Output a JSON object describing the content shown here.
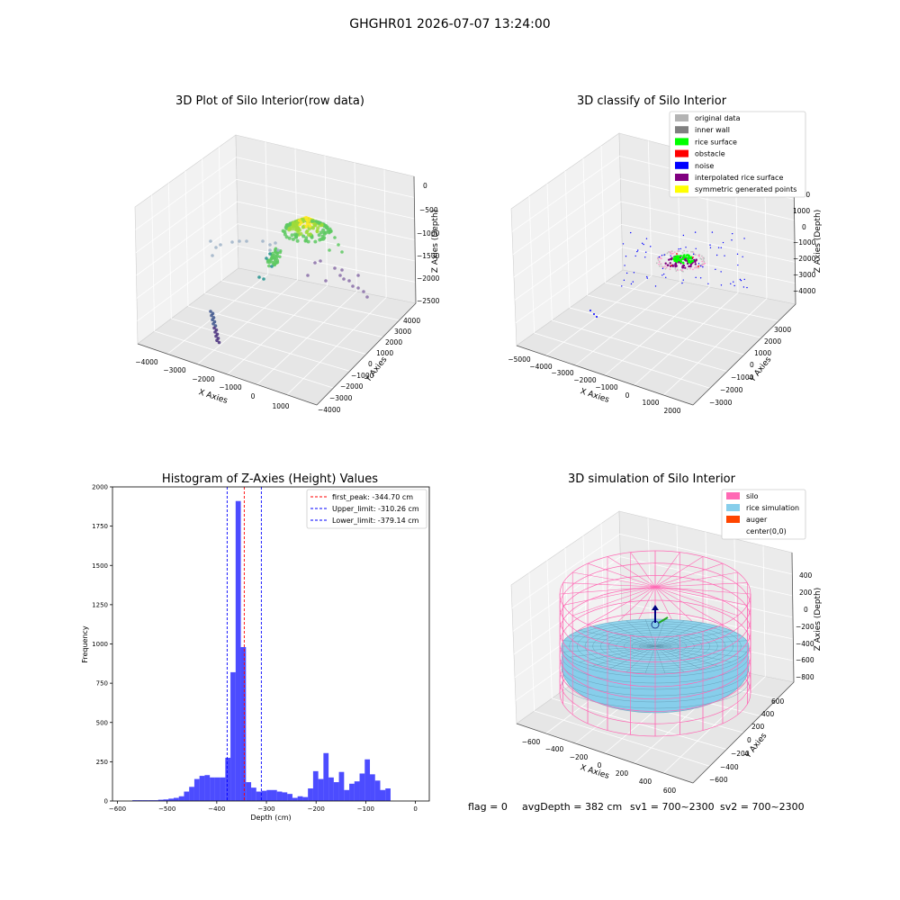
{
  "figure": {
    "suptitle": "GHGHR01 2026-07-07 13:24:00",
    "status": {
      "flag": "flag = 0",
      "avg_depth": "avgDepth = 382 cm",
      "sv1": "sv1 = 700~2300",
      "sv2": "sv2 = 700~2300"
    }
  },
  "panels": {
    "raw": {
      "title": "3D Plot of Silo Interior(row data)",
      "xlabel": "X Axies",
      "ylabel": "Y Axies",
      "zlabel": "Z Axies (Depth)",
      "xticks": [
        "−4000",
        "−3000",
        "−2000",
        "−1000",
        "0",
        "1000"
      ],
      "yticks": [
        "−4000",
        "−3000",
        "−2000",
        "−1000",
        "0",
        "1000",
        "2000",
        "3000",
        "4000"
      ],
      "zticks": [
        "0",
        "−500",
        "−1000",
        "−1500",
        "−2000",
        "−2500"
      ]
    },
    "classify": {
      "title": "3D classify of Silo Interior",
      "xlabel": "X Axies",
      "ylabel": "Y Axies",
      "zlabel": "Z Axies (Depth)",
      "xticks": [
        "−5000",
        "−4000",
        "−3000",
        "−2000",
        "−1000",
        "0",
        "1000",
        "2000"
      ],
      "yticks": [
        "−3000",
        "−2000",
        "−1000",
        "0",
        "1000",
        "2000",
        "3000"
      ],
      "zticks": [
        "2000",
        "1000",
        "0",
        "−1000",
        "−2000",
        "−3000",
        "−4000"
      ],
      "legend": [
        {
          "label": "original data",
          "color": "#b3b3b3"
        },
        {
          "label": "inner wall",
          "color": "#808080"
        },
        {
          "label": "rice surface",
          "color": "#00ff00"
        },
        {
          "label": "obstacle",
          "color": "#ff0000"
        },
        {
          "label": "noise",
          "color": "#0000ff"
        },
        {
          "label": "interpolated rice surface",
          "color": "#800080"
        },
        {
          "label": "symmetric generated points",
          "color": "#ffff00"
        }
      ]
    },
    "simulation": {
      "title": "3D simulation of Silo Interior",
      "xlabel": "X Axies",
      "ylabel": "Y Axies",
      "zlabel": "Z Axies (Depth)",
      "xticks": [
        "−600",
        "−400",
        "−200",
        "0",
        "200",
        "400",
        "600"
      ],
      "yticks": [
        "−600",
        "−400",
        "−200",
        "0",
        "200",
        "400",
        "600"
      ],
      "zticks": [
        "400",
        "200",
        "0",
        "−200",
        "−400",
        "−600",
        "−800"
      ],
      "legend": [
        {
          "label": "silo",
          "color": "#ff69b4"
        },
        {
          "label": "rice simulation",
          "color": "#87ceeb"
        },
        {
          "label": "auger",
          "color": "#ff4500"
        },
        {
          "label": "center(0,0)",
          "color": ""
        }
      ]
    }
  },
  "chart_data": {
    "type": "bar",
    "title": "Histogram of Z-Axies (Height) Values",
    "xlabel": "Depth (cm)",
    "ylabel": "Frequency",
    "xlim": [
      -610,
      28
    ],
    "ylim": [
      0,
      2000
    ],
    "xticks": [
      -600,
      -500,
      -400,
      -300,
      -200,
      -100,
      0
    ],
    "yticks": [
      0,
      250,
      500,
      750,
      1000,
      1250,
      1500,
      1750,
      2000
    ],
    "bar_color": "#0000ff",
    "bin_width": 10.4,
    "bin_edges_start": -570,
    "values": [
      5,
      5,
      5,
      5,
      5,
      8,
      10,
      15,
      20,
      30,
      60,
      90,
      140,
      160,
      165,
      150,
      150,
      150,
      275,
      820,
      1910,
      980,
      120,
      85,
      60,
      65,
      70,
      70,
      60,
      55,
      45,
      20,
      30,
      25,
      80,
      190,
      140,
      305,
      150,
      120,
      185,
      70,
      110,
      125,
      175,
      265,
      170,
      130,
      70,
      80
    ],
    "vlines": [
      {
        "label": "first_peak: -344.70 cm",
        "x": -344.7,
        "color": "#ff0000"
      },
      {
        "label": "Upper_limit: -310.26 cm",
        "x": -310.26,
        "color": "#0000ff"
      },
      {
        "label": "Lower_limit: -379.14 cm",
        "x": -379.14,
        "color": "#0000ff"
      }
    ],
    "legend_position": "top-right"
  }
}
